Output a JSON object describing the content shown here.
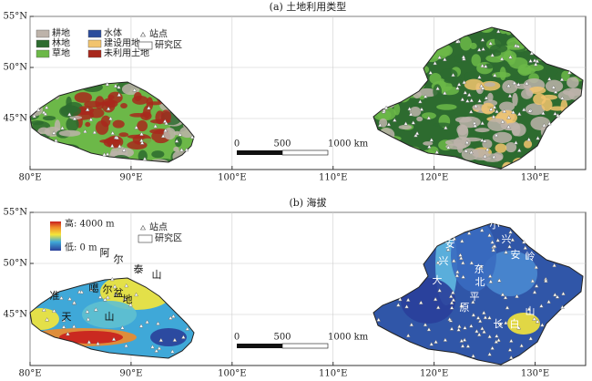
{
  "panels": [
    {
      "title": "(a) 土地利用类型",
      "legend": [
        {
          "name": "耕地",
          "color": "#bdb3aa"
        },
        {
          "name": "林地",
          "color": "#2d6b2f"
        },
        {
          "name": "草地",
          "color": "#6cb848"
        },
        {
          "name": "水体",
          "color": "#2b4c9c"
        },
        {
          "name": "建设用地",
          "color": "#f2c46d"
        },
        {
          "name": "未利用土地",
          "color": "#a8281c"
        }
      ],
      "station": "站点",
      "study_area": "研究区"
    },
    {
      "title": "(b) 海拔",
      "elevation": {
        "high": "高: 4000 m",
        "low": "低: 0 m"
      },
      "station": "站点",
      "study_area": "研究区",
      "places": [
        "阿",
        "尔",
        "泰",
        "山",
        "准",
        "噶",
        "尔",
        "盆",
        "地",
        "天",
        "山",
        "岭",
        "安",
        "兴",
        "大",
        "小",
        "兴",
        "安",
        "岭",
        "东",
        "北",
        "平",
        "原",
        "长",
        "白",
        "山"
      ]
    }
  ],
  "xaxis": {
    "lim": [
      80,
      135
    ],
    "ticks": [
      {
        "value": 80,
        "label": "80°E"
      },
      {
        "value": 90,
        "label": "90°E"
      },
      {
        "value": 100,
        "label": "100°E"
      },
      {
        "value": 110,
        "label": "110°E"
      },
      {
        "value": 120,
        "label": "120°E"
      },
      {
        "value": 130,
        "label": "130°E"
      }
    ]
  },
  "yaxis": {
    "lim": [
      40,
      55
    ],
    "ticks": [
      {
        "value": 45,
        "label": "45°N"
      },
      {
        "value": 50,
        "label": "50°N"
      },
      {
        "value": 55,
        "label": "55°N"
      }
    ]
  },
  "scale_bar": {
    "labels": [
      "0",
      "500",
      "1000 km"
    ]
  }
}
